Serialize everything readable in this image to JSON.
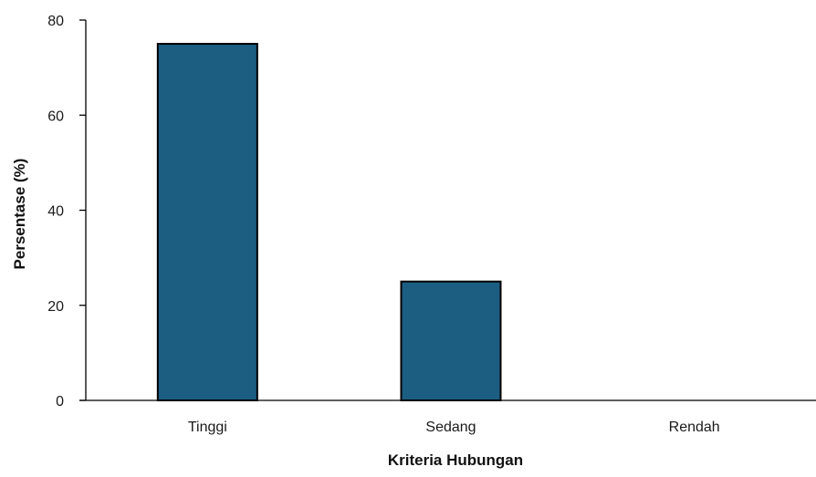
{
  "chart_data": {
    "type": "bar",
    "categories": [
      "Tinggi",
      "Sedang",
      "Rendah"
    ],
    "values": [
      75,
      25,
      0
    ],
    "xlabel": "Kriteria Hubungan",
    "ylabel": "Persentase (%)",
    "ylim": [
      0,
      80
    ],
    "yticks": [
      0,
      20,
      40,
      60,
      80
    ],
    "grid": false,
    "legend": "none",
    "colors": {
      "bar_fill": "#1b5e82",
      "bar_stroke": "#000000",
      "axis": "#000000"
    }
  }
}
